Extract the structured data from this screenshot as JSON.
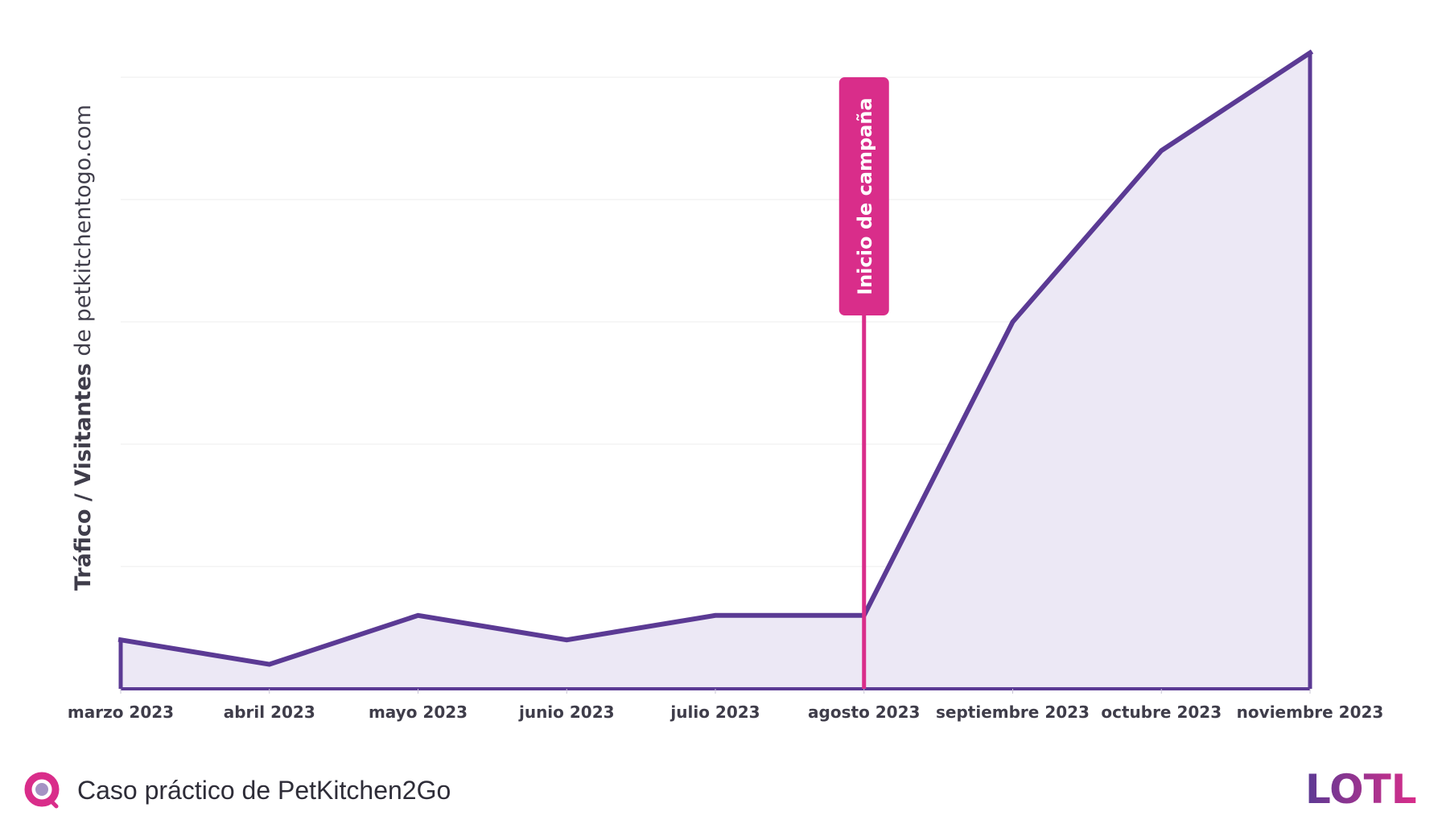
{
  "chart_data": {
    "type": "area",
    "title": "",
    "xlabel": "",
    "ylabel": {
      "bold": "Tráfico / Visitantes",
      "regular": " de petkitchentogo.com"
    },
    "ylim": [
      0,
      100
    ],
    "gridlines": [
      20,
      40,
      60,
      80,
      100
    ],
    "categories": [
      "marzo 2023",
      "abril 2023",
      "mayo 2023",
      "junio 2023",
      "julio 2023",
      "agosto 2023",
      "septiembre 2023",
      "octubre 2023",
      "noviembre 2023"
    ],
    "series": [
      {
        "name": "Tráfico",
        "values": [
          8,
          4,
          12,
          8,
          12,
          12,
          60,
          88,
          104
        ]
      }
    ],
    "annotations": [
      {
        "category": "agosto 2023",
        "label": "Inicio de campaña"
      }
    ],
    "colors": {
      "line": "#5b3a94",
      "fill": "#ece8f5",
      "marker": "#d92d8a",
      "grid": "#ececec",
      "text": "#3f3d4a"
    }
  },
  "footer": {
    "caption": "Caso práctico de PetKitchen2Go",
    "logo_icon": "lotl-circle-icon",
    "brand": "LOTL"
  }
}
